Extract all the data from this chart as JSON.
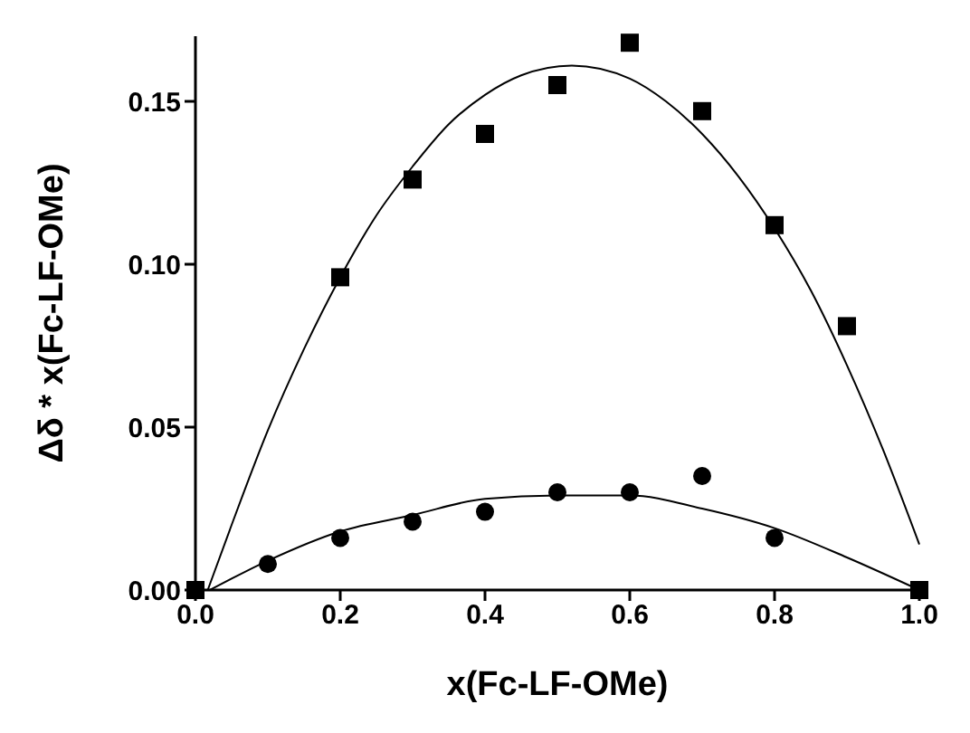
{
  "chart_data": {
    "type": "scatter",
    "xlabel": "x(Fc-LF-OMe)",
    "ylabel": "Δδ * x(Fc-LF-OMe)",
    "xlim": [
      0,
      1
    ],
    "xticks": [
      {
        "value": 0,
        "label": "0.0"
      },
      0.2,
      0.4,
      0.6,
      0.8,
      {
        "value": 1,
        "label": "1.0"
      }
    ],
    "ylim": [
      0,
      0.17
    ],
    "yticks": [
      {
        "value": 0,
        "label": "0.00"
      },
      {
        "value": 0.05,
        "label": "0.05"
      },
      {
        "value": 0.1,
        "label": "0.10"
      },
      {
        "value": 0.15,
        "label": "0.15"
      }
    ],
    "grid": false,
    "legend": false,
    "series": [
      {
        "marker": "square",
        "color": "#000000",
        "x": [
          0,
          0.2,
          0.3,
          0.4,
          0.5,
          0.6,
          0.7,
          0.8,
          0.9,
          1.0
        ],
        "values": [
          0,
          0.096,
          0.126,
          0.14,
          0.155,
          0.168,
          0.147,
          0.112,
          0.081,
          0
        ]
      },
      {
        "marker": "circle",
        "color": "#000000",
        "x": [
          0.1,
          0.2,
          0.3,
          0.4,
          0.5,
          0.6,
          0.7,
          0.8
        ],
        "values": [
          0.008,
          0.016,
          0.021,
          0.024,
          0.03,
          0.03,
          0.035,
          0.016
        ]
      },
      {
        "type": "line",
        "marker": "none",
        "line_style": "solid",
        "color": "#000000",
        "x": [
          0.017,
          0.05,
          0.1,
          0.15,
          0.2,
          0.25,
          0.3,
          0.35,
          0.4,
          0.45,
          0.52,
          0.6,
          0.65,
          0.7,
          0.75,
          0.8,
          0.85,
          0.9,
          0.95,
          1.0
        ],
        "values": [
          0,
          0.02,
          0.049,
          0.074,
          0.096,
          0.115,
          0.13,
          0.143,
          0.152,
          0.158,
          0.161,
          0.157,
          0.15,
          0.14,
          0.127,
          0.111,
          0.092,
          0.069,
          0.043,
          0.014
        ]
      },
      {
        "type": "line",
        "marker": "none",
        "line_style": "solid",
        "color": "#000000",
        "x": [
          0.02,
          0.1,
          0.2,
          0.3,
          0.4,
          0.5,
          0.6,
          0.7,
          0.8,
          0.9,
          1.0
        ],
        "values": [
          0,
          0.009,
          0.018,
          0.023,
          0.028,
          0.029,
          0.029,
          0.025,
          0.019,
          0.01,
          0
        ]
      }
    ]
  }
}
